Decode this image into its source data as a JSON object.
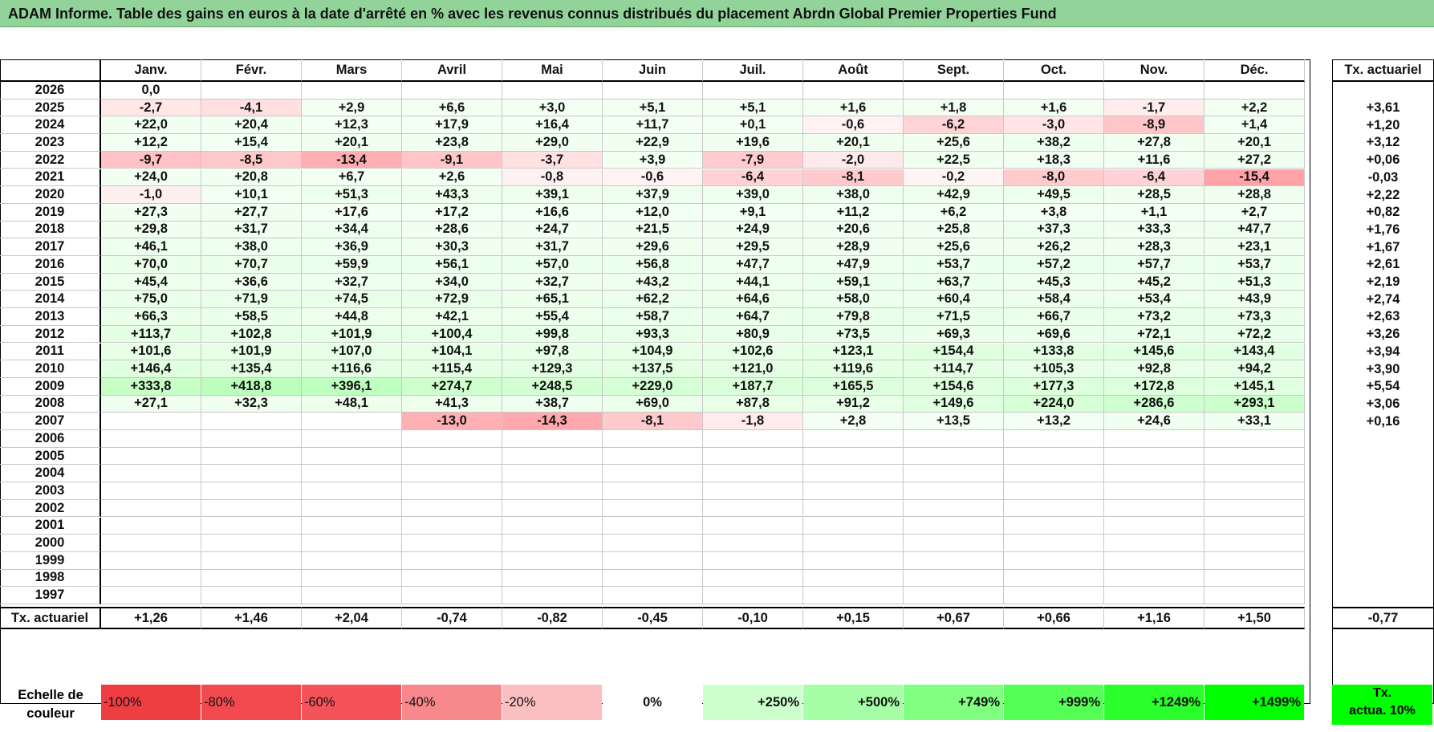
{
  "title": "ADAM Informe. Table des gains en euros à la date d'arrêté en % avec les revenus connus distribués du placement Abrdn Global Premier Properties Fund",
  "months": [
    "Janv.",
    "Févr.",
    "Mars",
    "Avril",
    "Mai",
    "Juin",
    "Juil.",
    "Août",
    "Sept.",
    "Oct.",
    "Nov.",
    "Déc."
  ],
  "actuarial_header": "Tx. actuariel",
  "rows": [
    {
      "year": "2026",
      "values": [
        "0,0",
        "",
        "",
        "",
        "",
        "",
        "",
        "",
        "",
        "",
        "",
        ""
      ],
      "actuarial": ""
    },
    {
      "year": "2025",
      "values": [
        "-2,7",
        "-4,1",
        "+2,9",
        "+6,6",
        "+3,0",
        "+5,1",
        "+5,1",
        "+1,6",
        "+1,8",
        "+1,6",
        "-1,7",
        "+2,2"
      ],
      "actuarial": "+3,61"
    },
    {
      "year": "2024",
      "values": [
        "+22,0",
        "+20,4",
        "+12,3",
        "+17,9",
        "+16,4",
        "+11,7",
        "+0,1",
        "-0,6",
        "-6,2",
        "-3,0",
        "-8,9",
        "+1,4"
      ],
      "actuarial": "+1,20"
    },
    {
      "year": "2023",
      "values": [
        "+12,2",
        "+15,4",
        "+20,1",
        "+23,8",
        "+29,0",
        "+22,9",
        "+19,6",
        "+20,1",
        "+25,6",
        "+38,2",
        "+27,8",
        "+20,1"
      ],
      "actuarial": "+3,12"
    },
    {
      "year": "2022",
      "values": [
        "-9,7",
        "-8,5",
        "-13,4",
        "-9,1",
        "-3,7",
        "+3,9",
        "-7,9",
        "-2,0",
        "+22,5",
        "+18,3",
        "+11,6",
        "+27,2"
      ],
      "actuarial": "+0,06"
    },
    {
      "year": "2021",
      "values": [
        "+24,0",
        "+20,8",
        "+6,7",
        "+2,6",
        "-0,8",
        "-0,6",
        "-6,4",
        "-8,1",
        "-0,2",
        "-8,0",
        "-6,4",
        "-15,4"
      ],
      "actuarial": "-0,03"
    },
    {
      "year": "2020",
      "values": [
        "-1,0",
        "+10,1",
        "+51,3",
        "+43,3",
        "+39,1",
        "+37,9",
        "+39,0",
        "+38,0",
        "+42,9",
        "+49,5",
        "+28,5",
        "+28,8"
      ],
      "actuarial": "+2,22"
    },
    {
      "year": "2019",
      "values": [
        "+27,3",
        "+27,7",
        "+17,6",
        "+17,2",
        "+16,6",
        "+12,0",
        "+9,1",
        "+11,2",
        "+6,2",
        "+3,8",
        "+1,1",
        "+2,7"
      ],
      "actuarial": "+0,82"
    },
    {
      "year": "2018",
      "values": [
        "+29,8",
        "+31,7",
        "+34,4",
        "+28,6",
        "+24,7",
        "+21,5",
        "+24,9",
        "+20,6",
        "+25,8",
        "+37,3",
        "+33,3",
        "+47,7"
      ],
      "actuarial": "+1,76"
    },
    {
      "year": "2017",
      "values": [
        "+46,1",
        "+38,0",
        "+36,9",
        "+30,3",
        "+31,7",
        "+29,6",
        "+29,5",
        "+28,9",
        "+25,6",
        "+26,2",
        "+28,3",
        "+23,1"
      ],
      "actuarial": "+1,67"
    },
    {
      "year": "2016",
      "values": [
        "+70,0",
        "+70,7",
        "+59,9",
        "+56,1",
        "+57,0",
        "+56,8",
        "+47,7",
        "+47,9",
        "+53,7",
        "+57,2",
        "+57,7",
        "+53,7"
      ],
      "actuarial": "+2,61"
    },
    {
      "year": "2015",
      "values": [
        "+45,4",
        "+36,6",
        "+32,7",
        "+34,0",
        "+32,7",
        "+43,2",
        "+44,1",
        "+59,1",
        "+63,7",
        "+45,3",
        "+45,2",
        "+51,3"
      ],
      "actuarial": "+2,19"
    },
    {
      "year": "2014",
      "values": [
        "+75,0",
        "+71,9",
        "+74,5",
        "+72,9",
        "+65,1",
        "+62,2",
        "+64,6",
        "+58,0",
        "+60,4",
        "+58,4",
        "+53,4",
        "+43,9"
      ],
      "actuarial": "+2,74"
    },
    {
      "year": "2013",
      "values": [
        "+66,3",
        "+58,5",
        "+44,8",
        "+42,1",
        "+55,4",
        "+58,7",
        "+64,7",
        "+79,8",
        "+71,5",
        "+66,7",
        "+73,2",
        "+73,3"
      ],
      "actuarial": "+2,63"
    },
    {
      "year": "2012",
      "values": [
        "+113,7",
        "+102,8",
        "+101,9",
        "+100,4",
        "+99,8",
        "+93,3",
        "+80,9",
        "+73,5",
        "+69,3",
        "+69,6",
        "+72,1",
        "+72,2"
      ],
      "actuarial": "+3,26"
    },
    {
      "year": "2011",
      "values": [
        "+101,6",
        "+101,9",
        "+107,0",
        "+104,1",
        "+97,8",
        "+104,9",
        "+102,6",
        "+123,1",
        "+154,4",
        "+133,8",
        "+145,6",
        "+143,4"
      ],
      "actuarial": "+3,94"
    },
    {
      "year": "2010",
      "values": [
        "+146,4",
        "+135,4",
        "+116,6",
        "+115,4",
        "+129,3",
        "+137,5",
        "+121,0",
        "+119,6",
        "+114,7",
        "+105,3",
        "+92,8",
        "+94,2"
      ],
      "actuarial": "+3,90"
    },
    {
      "year": "2009",
      "values": [
        "+333,8",
        "+418,8",
        "+396,1",
        "+274,7",
        "+248,5",
        "+229,0",
        "+187,7",
        "+165,5",
        "+154,6",
        "+177,3",
        "+172,8",
        "+145,1"
      ],
      "actuarial": "+5,54"
    },
    {
      "year": "2008",
      "values": [
        "+27,1",
        "+32,3",
        "+48,1",
        "+41,3",
        "+38,7",
        "+69,0",
        "+87,8",
        "+91,2",
        "+149,6",
        "+224,0",
        "+286,6",
        "+293,1"
      ],
      "actuarial": "+3,06"
    },
    {
      "year": "2007",
      "values": [
        "",
        "",
        "",
        "-13,0",
        "-14,3",
        "-8,1",
        "-1,8",
        "+2,8",
        "+13,5",
        "+13,2",
        "+24,6",
        "+33,1"
      ],
      "actuarial": "+0,16"
    },
    {
      "year": "2006",
      "values": [
        "",
        "",
        "",
        "",
        "",
        "",
        "",
        "",
        "",
        "",
        "",
        ""
      ],
      "actuarial": ""
    },
    {
      "year": "2005",
      "values": [
        "",
        "",
        "",
        "",
        "",
        "",
        "",
        "",
        "",
        "",
        "",
        ""
      ],
      "actuarial": ""
    },
    {
      "year": "2004",
      "values": [
        "",
        "",
        "",
        "",
        "",
        "",
        "",
        "",
        "",
        "",
        "",
        ""
      ],
      "actuarial": ""
    },
    {
      "year": "2003",
      "values": [
        "",
        "",
        "",
        "",
        "",
        "",
        "",
        "",
        "",
        "",
        "",
        ""
      ],
      "actuarial": ""
    },
    {
      "year": "2002",
      "values": [
        "",
        "",
        "",
        "",
        "",
        "",
        "",
        "",
        "",
        "",
        "",
        ""
      ],
      "actuarial": ""
    },
    {
      "year": "2001",
      "values": [
        "",
        "",
        "",
        "",
        "",
        "",
        "",
        "",
        "",
        "",
        "",
        ""
      ],
      "actuarial": ""
    },
    {
      "year": "2000",
      "values": [
        "",
        "",
        "",
        "",
        "",
        "",
        "",
        "",
        "",
        "",
        "",
        ""
      ],
      "actuarial": ""
    },
    {
      "year": "1999",
      "values": [
        "",
        "",
        "",
        "",
        "",
        "",
        "",
        "",
        "",
        "",
        "",
        ""
      ],
      "actuarial": ""
    },
    {
      "year": "1998",
      "values": [
        "",
        "",
        "",
        "",
        "",
        "",
        "",
        "",
        "",
        "",
        "",
        ""
      ],
      "actuarial": ""
    },
    {
      "year": "1997",
      "values": [
        "",
        "",
        "",
        "",
        "",
        "",
        "",
        "",
        "",
        "",
        "",
        ""
      ],
      "actuarial": ""
    }
  ],
  "footer": {
    "label": "Tx. actuariel",
    "values": [
      "+1,26",
      "+1,46",
      "+2,04",
      "-0,74",
      "-0,82",
      "-0,45",
      "-0,10",
      "+0,15",
      "+0,67",
      "+0,66",
      "+1,16",
      "+1,50"
    ],
    "total": "-0,77"
  },
  "legend": {
    "label_line1": "Echelle de",
    "label_line2": "couleur",
    "items": [
      {
        "label": "-100%",
        "color": "#ef3e42"
      },
      {
        "label": "-80%",
        "color": "#f24a4f"
      },
      {
        "label": "-60%",
        "color": "#f5535a"
      },
      {
        "label": "-40%",
        "color": "#f7888c"
      },
      {
        "label": "-20%",
        "color": "#fbbfc1"
      },
      {
        "label": "0%",
        "color": "#ffffff"
      },
      {
        "label": "+250%",
        "color": "#ccffcc"
      },
      {
        "label": "+500%",
        "color": "#a6ffa6"
      },
      {
        "label": "+749%",
        "color": "#80ff80"
      },
      {
        "label": "+999%",
        "color": "#55ff55"
      },
      {
        "label": "+1249%",
        "color": "#2bff2b"
      },
      {
        "label": "+1499%",
        "color": "#00ff00"
      }
    ],
    "act_line1": "Tx.",
    "act_line2": "actua. 10%",
    "act_color": "#00ff00"
  }
}
